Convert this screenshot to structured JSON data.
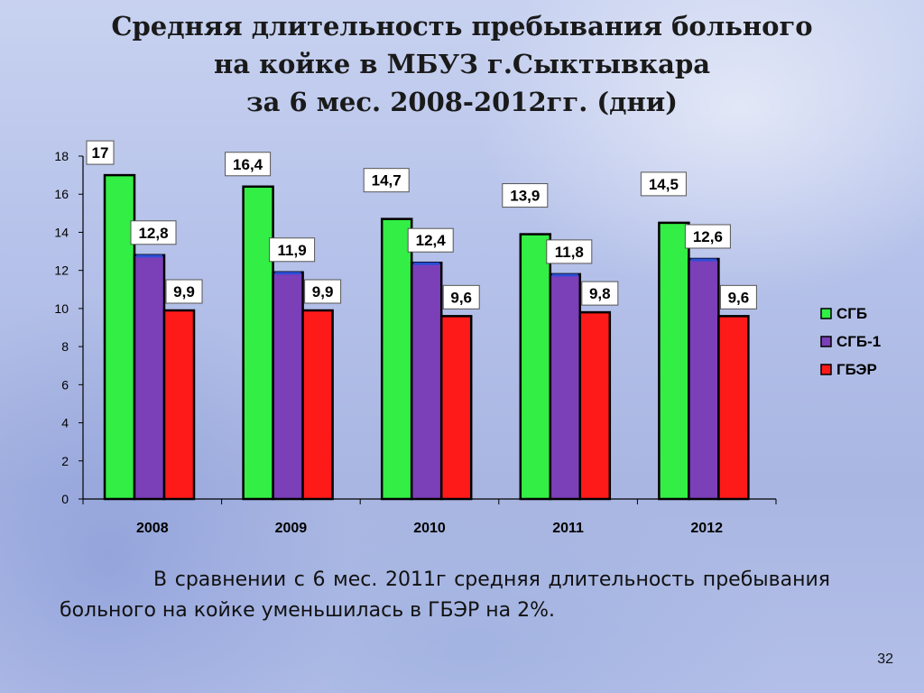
{
  "title": {
    "line1": "Средняя длительность пребывания больного",
    "line2": "на койке в МБУЗ г.Сыктывкара",
    "line3": "за 6 мес. 2008-2012гг. (дни)"
  },
  "caption": "В сравнении с 6 мес. 2011г средняя длительность пребывания больного на койке уменьшилась в ГБЭР на 2%.",
  "page_number": "32",
  "chart_data": {
    "type": "bar",
    "categories": [
      "2008",
      "2009",
      "2010",
      "2011",
      "2012"
    ],
    "series": [
      {
        "name": "СГБ",
        "color": "#33ee44",
        "values": [
          17,
          16.4,
          14.7,
          13.9,
          14.5
        ],
        "labels": [
          "17",
          "16,4",
          "14,7",
          "13,9",
          "14,5"
        ]
      },
      {
        "name": "СГБ-1",
        "color": "#7b3fb8",
        "edge": "#2a4fd6",
        "values": [
          12.8,
          11.9,
          12.4,
          11.8,
          12.6
        ],
        "labels": [
          "12,8",
          "11,9",
          "12,4",
          "11,8",
          "12,6"
        ]
      },
      {
        "name": "ГБЭР",
        "color": "#ff1a1a",
        "values": [
          9.9,
          9.9,
          9.6,
          9.8,
          9.6
        ],
        "labels": [
          "9,9",
          "9,9",
          "9,6",
          "9,8",
          "9,6"
        ]
      }
    ],
    "ylim": [
      0,
      18
    ],
    "yticks": [
      "0",
      "2",
      "4",
      "6",
      "8",
      "10",
      "12",
      "14",
      "16",
      "18"
    ],
    "legend_position": "right",
    "grid": false
  }
}
